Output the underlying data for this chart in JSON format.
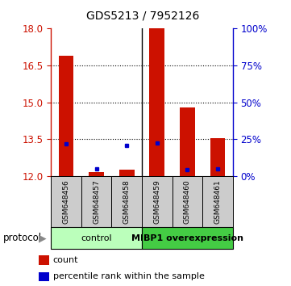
{
  "title": "GDS5213 / 7952126",
  "samples": [
    "GSM648456",
    "GSM648457",
    "GSM648458",
    "GSM648459",
    "GSM648460",
    "GSM648461"
  ],
  "count_values": [
    16.9,
    12.15,
    12.25,
    18.0,
    14.8,
    13.55
  ],
  "count_base": 12.0,
  "percentile_values": [
    13.3,
    12.3,
    13.25,
    13.35,
    12.25,
    12.3
  ],
  "ylim_left": [
    12.0,
    18.0
  ],
  "yticks_left": [
    12,
    13.5,
    15,
    16.5,
    18
  ],
  "yticks_right": [
    0,
    25,
    50,
    75,
    100
  ],
  "bar_color": "#cc1100",
  "dot_color": "#0000cc",
  "control_color": "#bbffbb",
  "mibp1_color": "#44cc44",
  "sample_bg_color": "#cccccc",
  "legend_count_label": "count",
  "legend_percentile_label": "percentile rank within the sample",
  "protocol_label": "protocol",
  "control_label": "control",
  "mibp1_label": "MIBP1 overexpression",
  "right_axis_color": "#0000cc",
  "left_axis_color": "#cc1100",
  "n_control": 3,
  "n_mibp1": 3
}
